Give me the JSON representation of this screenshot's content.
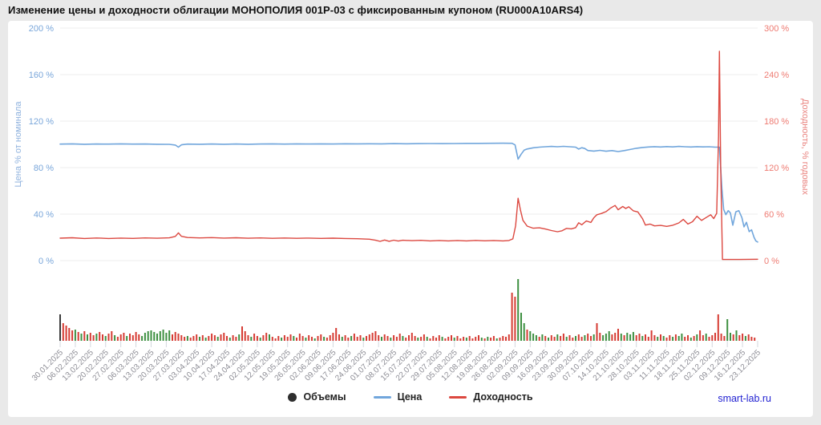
{
  "page": {
    "title": "Изменение цены и доходности облигации МОНОПОЛИЯ 001P-03 с фиксированным купоном (RU000A10ARS4)",
    "watermark": "smart-lab.ru"
  },
  "legend": {
    "volumes": "Объемы",
    "price": "Цена",
    "yield": "Доходность"
  },
  "colors": {
    "background": "#e9e9e9",
    "card": "#ffffff",
    "grid": "#ececec",
    "tick_mark": "#d3d7de",
    "date_label": "#8e8e96",
    "price_line": "#71a6dc",
    "yield_line": "#dc4840",
    "volume_up": "#3e9041",
    "volume_down": "#d63b33",
    "volume_neutral": "#3a3a3a",
    "watermark": "#2323d2"
  },
  "chart_data": {
    "type": "line",
    "title": "Изменение цены и доходности облигации МОНОПОЛИЯ 001P-03 с фиксированным купоном (RU000A10ARS4)",
    "grid": true,
    "legend_position": "bottom-center",
    "left_axis": {
      "label": "Цена % от номинала",
      "range": [
        0,
        200
      ],
      "tick_values": [
        0,
        40,
        80,
        120,
        160,
        200
      ],
      "tick_labels": [
        "0 %",
        "40 %",
        "80 %",
        "120 %",
        "160 %",
        "200 %"
      ],
      "tick_color": "#79a6da",
      "title_color": "#8fb2de"
    },
    "right_axis": {
      "label": "Доходность, % годовых",
      "range": [
        0,
        300
      ],
      "tick_values": [
        0,
        60,
        120,
        180,
        240,
        300
      ],
      "tick_labels": [
        "0 %",
        "60 %",
        "120 %",
        "180 %",
        "240 %",
        "300 %"
      ],
      "tick_color": "#ee7b72",
      "title_color": "#e9837f"
    },
    "x_ticks": [
      "30.01.2025",
      "06.02.2025",
      "13.02.2025",
      "20.02.2025",
      "27.02.2025",
      "06.03.2025",
      "13.03.2025",
      "20.03.2025",
      "27.03.2025",
      "03.04.2025",
      "10.04.2025",
      "17.04.2025",
      "24.04.2025",
      "02.05.2025",
      "12.05.2025",
      "19.05.2025",
      "26.05.2025",
      "02.06.2025",
      "09.06.2025",
      "17.06.2025",
      "24.06.2025",
      "01.07.2025",
      "08.07.2025",
      "15.07.2025",
      "22.07.2025",
      "29.07.2025",
      "05.08.2025",
      "12.08.2025",
      "19.08.2025",
      "26.08.2025",
      "02.09.2025",
      "09.09.2025",
      "16.09.2025",
      "23.09.2025",
      "30.09.2025",
      "07.10.2025",
      "14.10.2025",
      "21.10.2025",
      "28.10.2025",
      "03.11.2025",
      "11.11.2025",
      "18.11.2025",
      "25.11.2025",
      "02.12.2025",
      "09.12.2025",
      "16.12.2025",
      "23.12.2025"
    ],
    "x_days_total": 230,
    "series": [
      {
        "id": "price",
        "name": "Цена",
        "type": "line",
        "axis": "left",
        "color": "#71a6dc",
        "width": 1.6,
        "points": [
          [
            0,
            100.2
          ],
          [
            4,
            100.4
          ],
          [
            8,
            100.1
          ],
          [
            12,
            100.3
          ],
          [
            16,
            100.2
          ],
          [
            20,
            100.4
          ],
          [
            24,
            100.2
          ],
          [
            28,
            100.3
          ],
          [
            32,
            100.1
          ],
          [
            36,
            100.0
          ],
          [
            38,
            99.4
          ],
          [
            39,
            97.6
          ],
          [
            40,
            99.6
          ],
          [
            42,
            100.2
          ],
          [
            46,
            100.1
          ],
          [
            50,
            100.3
          ],
          [
            54,
            100.1
          ],
          [
            58,
            100.3
          ],
          [
            62,
            100.1
          ],
          [
            66,
            100.3
          ],
          [
            70,
            100.4
          ],
          [
            74,
            100.2
          ],
          [
            78,
            100.4
          ],
          [
            82,
            100.3
          ],
          [
            86,
            100.4
          ],
          [
            90,
            100.3
          ],
          [
            94,
            100.5
          ],
          [
            98,
            100.4
          ],
          [
            102,
            100.5
          ],
          [
            106,
            100.4
          ],
          [
            110,
            100.6
          ],
          [
            114,
            100.5
          ],
          [
            118,
            100.6
          ],
          [
            122,
            100.7
          ],
          [
            126,
            100.6
          ],
          [
            130,
            100.7
          ],
          [
            134,
            100.8
          ],
          [
            138,
            100.8
          ],
          [
            142,
            100.9
          ],
          [
            146,
            101.0
          ],
          [
            149,
            100.9
          ],
          [
            150,
            99.5
          ],
          [
            151,
            87.3
          ],
          [
            152,
            91.5
          ],
          [
            153,
            95.0
          ],
          [
            154,
            96.0
          ],
          [
            156,
            97.0
          ],
          [
            158,
            97.6
          ],
          [
            160,
            97.9
          ],
          [
            162,
            98.2
          ],
          [
            164,
            97.9
          ],
          [
            166,
            98.3
          ],
          [
            168,
            97.9
          ],
          [
            170,
            97.6
          ],
          [
            171,
            95.9
          ],
          [
            172,
            97.1
          ],
          [
            173,
            96.4
          ],
          [
            174,
            94.7
          ],
          [
            176,
            94.2
          ],
          [
            178,
            94.8
          ],
          [
            180,
            94.1
          ],
          [
            182,
            94.6
          ],
          [
            184,
            93.8
          ],
          [
            186,
            94.6
          ],
          [
            188,
            95.6
          ],
          [
            190,
            96.6
          ],
          [
            192,
            97.3
          ],
          [
            194,
            97.7
          ],
          [
            196,
            98.0
          ],
          [
            198,
            97.7
          ],
          [
            200,
            98.1
          ],
          [
            202,
            97.8
          ],
          [
            204,
            98.2
          ],
          [
            206,
            97.9
          ],
          [
            208,
            97.7
          ],
          [
            210,
            98.0
          ],
          [
            212,
            97.8
          ],
          [
            214,
            97.9
          ],
          [
            216,
            97.6
          ],
          [
            217.4,
            97.6
          ],
          [
            218.2,
            62
          ],
          [
            218.8,
            44
          ],
          [
            219.5,
            39.5
          ],
          [
            220.3,
            43
          ],
          [
            221,
            41
          ],
          [
            221.8,
            30.5
          ],
          [
            222.8,
            42
          ],
          [
            223.8,
            43
          ],
          [
            224.8,
            37
          ],
          [
            225.5,
            29
          ],
          [
            226.3,
            33
          ],
          [
            227.2,
            25
          ],
          [
            228,
            26.5
          ],
          [
            228.8,
            20
          ],
          [
            229.4,
            17
          ],
          [
            230,
            16
          ]
        ]
      },
      {
        "id": "yield",
        "name": "Доходность",
        "type": "line",
        "axis": "right",
        "color": "#dc4840",
        "width": 1.4,
        "points": [
          [
            0,
            29
          ],
          [
            4,
            29.5
          ],
          [
            8,
            28.6
          ],
          [
            12,
            29.2
          ],
          [
            16,
            28.5
          ],
          [
            20,
            29.1
          ],
          [
            24,
            28.7
          ],
          [
            28,
            29.3
          ],
          [
            32,
            28.9
          ],
          [
            36,
            29.4
          ],
          [
            38,
            31.2
          ],
          [
            39,
            35.8
          ],
          [
            40,
            31.3
          ],
          [
            42,
            29.8
          ],
          [
            46,
            29.3
          ],
          [
            50,
            29.7
          ],
          [
            54,
            29.1
          ],
          [
            58,
            29.5
          ],
          [
            62,
            28.9
          ],
          [
            66,
            29.3
          ],
          [
            70,
            28.8
          ],
          [
            74,
            29.2
          ],
          [
            78,
            28.8
          ],
          [
            82,
            29.1
          ],
          [
            86,
            28.7
          ],
          [
            90,
            29.0
          ],
          [
            94,
            28.5
          ],
          [
            98,
            28.2
          ],
          [
            102,
            27.6
          ],
          [
            104,
            26.3
          ],
          [
            105.5,
            24.8
          ],
          [
            107,
            26.6
          ],
          [
            108.5,
            24.9
          ],
          [
            110,
            26.4
          ],
          [
            111.5,
            25.2
          ],
          [
            113,
            26.3
          ],
          [
            116,
            25.8
          ],
          [
            119,
            26.2
          ],
          [
            122,
            25.5
          ],
          [
            125,
            26.0
          ],
          [
            128,
            25.4
          ],
          [
            131,
            26.0
          ],
          [
            134,
            25.5
          ],
          [
            137,
            26.1
          ],
          [
            140,
            25.6
          ],
          [
            143,
            26.0
          ],
          [
            146,
            25.5
          ],
          [
            148,
            26.0
          ],
          [
            149.3,
            28
          ],
          [
            150.2,
            45
          ],
          [
            151,
            80.5
          ],
          [
            151.8,
            65
          ],
          [
            152.6,
            52
          ],
          [
            154,
            44.5
          ],
          [
            156,
            41.8
          ],
          [
            158,
            42.3
          ],
          [
            160,
            40.8
          ],
          [
            162,
            38.8
          ],
          [
            164,
            37.2
          ],
          [
            165.5,
            38.5
          ],
          [
            167,
            41.6
          ],
          [
            168.5,
            41.0
          ],
          [
            170,
            42.5
          ],
          [
            171,
            48.8
          ],
          [
            172,
            46.2
          ],
          [
            173.5,
            51.2
          ],
          [
            175,
            49.2
          ],
          [
            176,
            55.3
          ],
          [
            177,
            59.2
          ],
          [
            178.5,
            60.8
          ],
          [
            180,
            63.2
          ],
          [
            181.5,
            67.8
          ],
          [
            183,
            71.2
          ],
          [
            184,
            65.6
          ],
          [
            185.5,
            69.8
          ],
          [
            186.5,
            67.2
          ],
          [
            187.5,
            69.4
          ],
          [
            189,
            64.2
          ],
          [
            190.5,
            62.8
          ],
          [
            192,
            54.2
          ],
          [
            193,
            45.8
          ],
          [
            194.5,
            47.2
          ],
          [
            196,
            44.8
          ],
          [
            198,
            45.4
          ],
          [
            200,
            44.2
          ],
          [
            202,
            45.6
          ],
          [
            204,
            48.6
          ],
          [
            205.5,
            53.2
          ],
          [
            207,
            47.2
          ],
          [
            208.5,
            50.2
          ],
          [
            210,
            57.2
          ],
          [
            211.5,
            51.8
          ],
          [
            213,
            55.6
          ],
          [
            214.5,
            59.2
          ],
          [
            215.5,
            54.2
          ],
          [
            216.5,
            61
          ],
          [
            217.1,
            160
          ],
          [
            217.4,
            270
          ],
          [
            217.8,
            120
          ],
          [
            218.4,
            1.5
          ],
          [
            224,
            1.5
          ],
          [
            230,
            1.8
          ]
        ]
      },
      {
        "id": "volume",
        "name": "Объемы",
        "type": "bar",
        "palette": {
          "k": "#3a3a3a",
          "r": "#d63b33",
          "g": "#3e9041"
        },
        "bars": [
          "33k",
          "22r",
          "19r",
          "16r",
          "13r",
          "14g",
          "11r",
          "9g",
          "12r",
          "8g",
          "10r",
          "7r",
          "9g",
          "11r",
          "8r",
          "6g",
          "9r",
          "12r",
          "7g",
          "5r",
          "8r",
          "10r",
          "6g",
          "9r",
          "7r",
          "11r",
          "8r",
          "6g",
          "10g",
          "12g",
          "13g",
          "11g",
          "9g",
          "12g",
          "14g",
          "10g",
          "13g",
          "8r",
          "11r",
          "9r",
          "7r",
          "5r",
          "6g",
          "4r",
          "6r",
          "8r",
          "5g",
          "7r",
          "4g",
          "6r",
          "9r",
          "7r",
          "5g",
          "8r",
          "10r",
          "6r",
          "4g",
          "7r",
          "5r",
          "8g",
          "18r",
          "12r",
          "7r",
          "5g",
          "9r",
          "6r",
          "4g",
          "7r",
          "10r",
          "8g",
          "5r",
          "3r",
          "6r",
          "4g",
          "7r",
          "5r",
          "8r",
          "6g",
          "4r",
          "9r",
          "6r",
          "4g",
          "7r",
          "5r",
          "3g",
          "6r",
          "8r",
          "5g",
          "4r",
          "7r",
          "10r",
          "16r",
          "8r",
          "5g",
          "7r",
          "4r",
          "6g",
          "9r",
          "5r",
          "7r",
          "4g",
          "6r",
          "8r",
          "10r",
          "12r",
          "7r",
          "5g",
          "8r",
          "6r",
          "4g",
          "7r",
          "5r",
          "9r",
          "6g",
          "4r",
          "7r",
          "10r",
          "6r",
          "4g",
          "5r",
          "8r",
          "5g",
          "3r",
          "6r",
          "4r",
          "7r",
          "5g",
          "3r",
          "5r",
          "7r",
          "4g",
          "6r",
          "3r",
          "5r",
          "4g",
          "6r",
          "3r",
          "5r",
          "7r",
          "4g",
          "3r",
          "5g",
          "4r",
          "6r",
          "3g",
          "4r",
          "6r",
          "5r",
          "8r",
          "60r",
          "55r",
          "77g",
          "35g",
          "22g",
          "14r",
          "12g",
          "9g",
          "7g",
          "5r",
          "8g",
          "6r",
          "4g",
          "7r",
          "5r",
          "8g",
          "6r",
          "9r",
          "5g",
          "7r",
          "4r",
          "6g",
          "8r",
          "5r",
          "7g",
          "9r",
          "6r",
          "8g",
          "22r",
          "10r",
          "7g",
          "9g",
          "12g",
          "8r",
          "10r",
          "15r",
          "9g",
          "7r",
          "10g",
          "8g",
          "11g",
          "7r",
          "9r",
          "6g",
          "8r",
          "5r",
          "13r",
          "7r",
          "5g",
          "8r",
          "6g",
          "4r",
          "7r",
          "5g",
          "8r",
          "6g",
          "9g",
          "5r",
          "7r",
          "4g",
          "6r",
          "8g",
          "13r",
          "7r",
          "9g",
          "5r",
          "7r",
          "10r",
          "33r",
          "9r",
          "6r",
          "27g",
          "10g",
          "8r",
          "13g",
          "7r",
          "9r",
          "6g",
          "8r",
          "5r",
          "4r"
        ]
      }
    ]
  }
}
